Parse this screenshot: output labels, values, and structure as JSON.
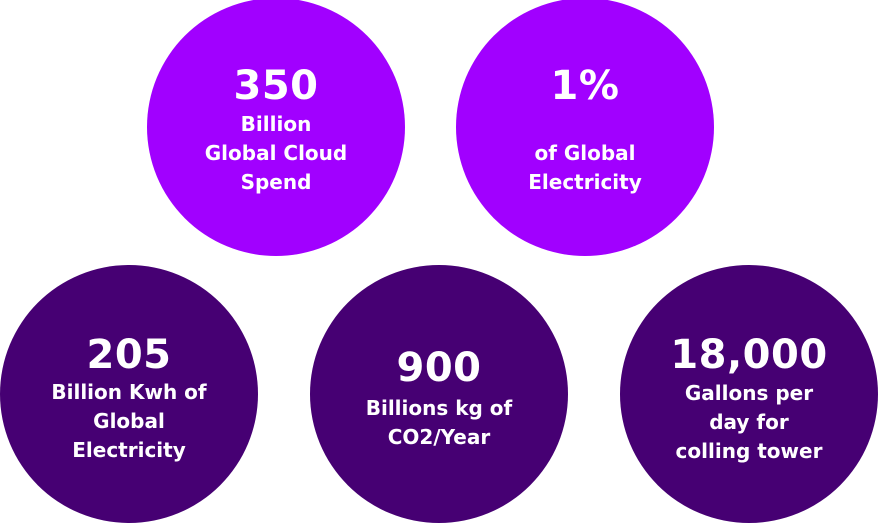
{
  "colors": {
    "top_circle": "#A100FF",
    "bottom_circle": "#460073",
    "text": "#FFFFFF"
  },
  "stats": [
    {
      "value": "350",
      "label": "Billion\nGlobal Cloud\nSpend",
      "color": "#A100FF"
    },
    {
      "value": "1%",
      "label": "of Global\nElectricity",
      "color": "#A100FF"
    },
    {
      "value": "205",
      "label": "Billion Kwh of\nGlobal\nElectricity",
      "color": "#460073"
    },
    {
      "value": "900",
      "label": "Billions kg of\nCO2/Year",
      "color": "#460073"
    },
    {
      "value": "18,000",
      "label": "Gallons per\nday for\ncolling tower",
      "color": "#460073"
    }
  ]
}
